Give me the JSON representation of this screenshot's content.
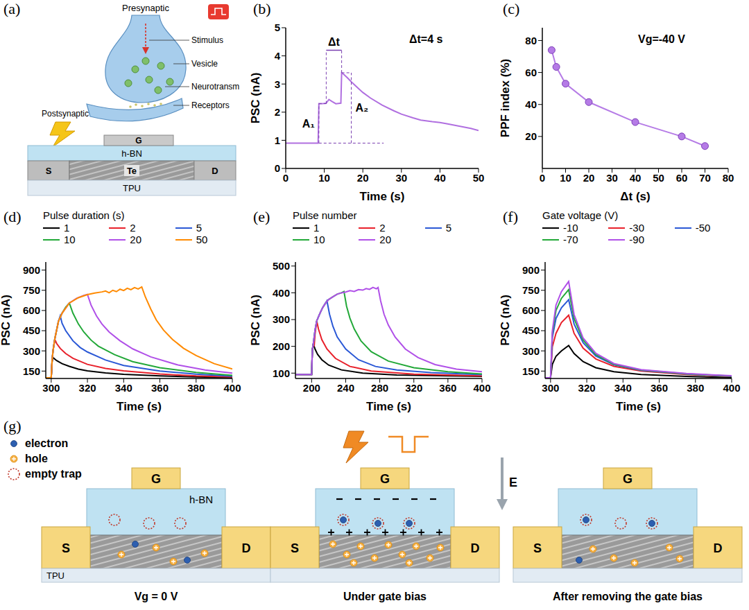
{
  "panel_a": {
    "panel": "(a)",
    "neuron": {
      "top": "Presynaptic",
      "labels": [
        "Stimulus",
        "Vesicle",
        "Neurotransm",
        "Receptors"
      ],
      "bottom": "Postsynaptic"
    },
    "device": {
      "gate": "G",
      "dielectric": "h-BN",
      "source": "S",
      "channel": "Te",
      "drain": "D",
      "substrate": "TPU"
    }
  },
  "chart_data": [
    {
      "panel": "(b)",
      "type": "line",
      "x_label": "Time (s)",
      "y_label": "PSC (nA)",
      "xlim": [
        0,
        50
      ],
      "xticks": [
        0,
        10,
        20,
        30,
        40,
        50
      ],
      "ylim": [
        0,
        5
      ],
      "yticks": [
        0,
        1,
        2,
        3,
        4,
        5
      ],
      "color": "#b06fe0",
      "x": [
        0,
        4,
        8.4,
        8.6,
        9.5,
        10.5,
        11.2,
        12,
        13,
        14.3,
        14.5,
        15,
        16,
        17,
        18,
        20,
        22,
        25,
        28,
        30,
        33,
        35,
        38,
        40,
        42,
        45,
        48,
        50
      ],
      "values": [
        0.9,
        0.9,
        0.9,
        2.3,
        2.3,
        2.32,
        2.45,
        2.38,
        2.3,
        2.32,
        3.4,
        3.35,
        3.22,
        3.08,
        2.95,
        2.7,
        2.5,
        2.25,
        2.05,
        1.93,
        1.8,
        1.72,
        1.66,
        1.63,
        1.58,
        1.5,
        1.42,
        1.35
      ],
      "annotation": "Δt=4 s",
      "guides": {
        "baseline": 0.9,
        "A1": {
          "label": "A₁",
          "x": 8.6,
          "y": 2.3
        },
        "A2": {
          "label": "A₂",
          "x": 17,
          "y": 3.4
        },
        "dt": {
          "label": "Δt",
          "x": [
            10.5,
            14.5
          ],
          "y": 4.2
        }
      }
    },
    {
      "panel": "(c)",
      "type": "line",
      "marker": "circle",
      "x_label": "Δt (s)",
      "y_label": "PPF index (%)",
      "xlim": [
        0,
        80
      ],
      "xticks": [
        0,
        10,
        20,
        30,
        40,
        50,
        60,
        70,
        80
      ],
      "ylim": [
        0,
        88
      ],
      "yticks": [
        20,
        40,
        60,
        80
      ],
      "color": "#b57be6",
      "x": [
        4,
        6,
        10,
        20,
        40,
        60,
        70
      ],
      "values": [
        74,
        63.5,
        53,
        41.5,
        29,
        20,
        14
      ],
      "annotation": "Vg=-40 V"
    },
    {
      "panel": "(d)",
      "type": "line",
      "x_label": "Time (s)",
      "y_label": "PSC (nA)",
      "xlim": [
        297,
        400
      ],
      "xticks": [
        300,
        320,
        340,
        360,
        380,
        400
      ],
      "ylim": [
        95,
        960
      ],
      "yticks": [
        150,
        300,
        450,
        600,
        750,
        900
      ],
      "legend": "top",
      "legend_title": "Pulse duration (s)",
      "series": [
        {
          "name": "1",
          "color": "#000000",
          "x": [
            297,
            300,
            300.5,
            301,
            303,
            306,
            310,
            315,
            320,
            330,
            340,
            360,
            380,
            400
          ],
          "values": [
            100,
            100,
            220,
            250,
            228,
            205,
            185,
            165,
            152,
            136,
            126,
            114,
            106,
            101
          ]
        },
        {
          "name": "2",
          "color": "#e8202a",
          "x": [
            297,
            300,
            300.5,
            301,
            302,
            303,
            305,
            308,
            312,
            320,
            330,
            340,
            360,
            380,
            400
          ],
          "values": [
            100,
            100,
            230,
            300,
            385,
            355,
            318,
            280,
            245,
            200,
            170,
            152,
            128,
            114,
            106
          ]
        },
        {
          "name": "5",
          "color": "#2a58d6",
          "x": [
            297,
            300,
            300.5,
            301,
            302,
            304,
            305,
            306,
            308,
            312,
            316,
            320,
            330,
            340,
            360,
            380,
            400
          ],
          "values": [
            100,
            100,
            230,
            300,
            390,
            520,
            560,
            505,
            450,
            375,
            325,
            292,
            232,
            192,
            150,
            127,
            112
          ]
        },
        {
          "name": "10",
          "color": "#22a838",
          "x": [
            297,
            300,
            300.5,
            301,
            302,
            304,
            306,
            308,
            310,
            312,
            315,
            318,
            322,
            326,
            335,
            345,
            360,
            380,
            400
          ],
          "values": [
            100,
            100,
            230,
            300,
            390,
            520,
            580,
            625,
            655,
            580,
            500,
            440,
            380,
            335,
            272,
            220,
            175,
            140,
            118
          ]
        },
        {
          "name": "20",
          "color": "#b050e8",
          "x": [
            297,
            300,
            300.5,
            301,
            302,
            304,
            306,
            310,
            314,
            318,
            320,
            322,
            325,
            328,
            332,
            338,
            345,
            355,
            370,
            385,
            400
          ],
          "values": [
            100,
            100,
            230,
            300,
            390,
            520,
            580,
            655,
            690,
            712,
            720,
            640,
            560,
            500,
            440,
            375,
            315,
            255,
            195,
            158,
            135
          ]
        },
        {
          "name": "50",
          "color": "#ff8a00",
          "x": [
            297,
            300,
            300.5,
            301,
            302,
            304,
            306,
            310,
            315,
            320,
            324,
            328,
            330,
            332,
            334,
            336,
            338,
            340,
            342,
            344,
            346,
            348,
            350,
            352,
            355,
            358,
            362,
            367,
            373,
            380,
            390,
            400
          ],
          "values": [
            100,
            100,
            230,
            300,
            390,
            520,
            580,
            655,
            695,
            718,
            730,
            738,
            745,
            732,
            750,
            740,
            758,
            748,
            765,
            755,
            770,
            760,
            775,
            700,
            610,
            530,
            455,
            385,
            320,
            265,
            205,
            165
          ]
        }
      ]
    },
    {
      "panel": "(e)",
      "type": "line",
      "x_label": "Time (s)",
      "y_label": "PSC (nA)",
      "xlim": [
        181,
        400
      ],
      "xticks": [
        200,
        240,
        280,
        320,
        360,
        400
      ],
      "ylim": [
        80,
        515
      ],
      "yticks": [
        100,
        200,
        300,
        400,
        500
      ],
      "legend": "top",
      "legend_title": "Pulse number",
      "series": [
        {
          "name": "1",
          "color": "#000000",
          "x": [
            181,
            200,
            200.5,
            201,
            202,
            204,
            207,
            212,
            220,
            235,
            260,
            300,
            400
          ],
          "values": [
            95,
            95,
            150,
            190,
            210,
            190,
            170,
            150,
            130,
            112,
            100,
            93,
            88
          ]
        },
        {
          "name": "2",
          "color": "#e8202a",
          "x": [
            181,
            200,
            200.5,
            201,
            202,
            203,
            204,
            205,
            206,
            208,
            212,
            218,
            228,
            245,
            270,
            320,
            400
          ],
          "values": [
            95,
            95,
            150,
            190,
            210,
            200,
            245,
            270,
            295,
            265,
            225,
            190,
            155,
            125,
            108,
            96,
            90
          ]
        },
        {
          "name": "5",
          "color": "#2a58d6",
          "x": [
            181,
            200,
            200.5,
            201,
            202,
            204,
            206,
            208,
            210,
            213,
            216,
            218,
            221,
            225,
            230,
            240,
            255,
            275,
            300,
            340,
            400
          ],
          "values": [
            95,
            95,
            150,
            190,
            210,
            260,
            295,
            310,
            325,
            345,
            360,
            370,
            320,
            275,
            235,
            190,
            150,
            125,
            112,
            102,
            94
          ]
        },
        {
          "name": "10",
          "color": "#22a838",
          "x": [
            181,
            200,
            200.5,
            201,
            202,
            204,
            206,
            208,
            210,
            213,
            216,
            220,
            225,
            230,
            235,
            238,
            241,
            245,
            250,
            258,
            270,
            290,
            320,
            360,
            400
          ],
          "values": [
            95,
            95,
            150,
            190,
            210,
            260,
            295,
            310,
            325,
            345,
            360,
            375,
            385,
            395,
            400,
            405,
            350,
            305,
            265,
            220,
            180,
            145,
            120,
            105,
            97
          ]
        },
        {
          "name": "20",
          "color": "#b050e8",
          "x": [
            181,
            200,
            200.5,
            201,
            202,
            204,
            206,
            208,
            210,
            213,
            216,
            220,
            225,
            230,
            235,
            240,
            245,
            250,
            255,
            260,
            264,
            268,
            272,
            276,
            278,
            281,
            285,
            290,
            298,
            310,
            325,
            345,
            370,
            400
          ],
          "values": [
            95,
            95,
            150,
            190,
            210,
            260,
            295,
            310,
            325,
            345,
            360,
            375,
            385,
            395,
            400,
            403,
            408,
            405,
            412,
            410,
            416,
            413,
            420,
            415,
            420,
            370,
            320,
            280,
            235,
            190,
            158,
            132,
            115,
            105
          ]
        }
      ]
    },
    {
      "panel": "(f)",
      "type": "line",
      "x_label": "Time (s)",
      "y_label": "PSC (nA)",
      "xlim": [
        297,
        400
      ],
      "xticks": [
        300,
        320,
        340,
        360,
        380,
        400
      ],
      "ylim": [
        95,
        960
      ],
      "yticks": [
        150,
        300,
        450,
        600,
        750,
        900
      ],
      "legend": "top",
      "legend_title": "Gate voltage (V)",
      "series": [
        {
          "name": "-10",
          "color": "#000000",
          "x": [
            297,
            300,
            301,
            303,
            306,
            310,
            313,
            318,
            325,
            335,
            350,
            375,
            400
          ],
          "values": [
            100,
            100,
            200,
            260,
            300,
            340,
            280,
            220,
            175,
            145,
            125,
            110,
            102
          ]
        },
        {
          "name": "-30",
          "color": "#e8202a",
          "x": [
            297,
            300,
            301,
            303,
            306,
            310,
            313,
            318,
            325,
            335,
            350,
            375,
            400
          ],
          "values": [
            100,
            100,
            330,
            430,
            510,
            565,
            430,
            320,
            240,
            185,
            150,
            125,
            110
          ]
        },
        {
          "name": "-50",
          "color": "#2a58d6",
          "x": [
            297,
            300,
            301,
            303,
            306,
            310,
            313,
            318,
            325,
            335,
            350,
            375,
            400
          ],
          "values": [
            100,
            100,
            400,
            540,
            620,
            680,
            500,
            360,
            262,
            196,
            156,
            128,
            112
          ]
        },
        {
          "name": "-70",
          "color": "#22a838",
          "x": [
            297,
            300,
            301,
            303,
            306,
            310,
            313,
            318,
            325,
            335,
            350,
            375,
            400
          ],
          "values": [
            100,
            100,
            430,
            600,
            690,
            755,
            540,
            380,
            272,
            200,
            158,
            130,
            113
          ]
        },
        {
          "name": "-90",
          "color": "#b050e8",
          "x": [
            297,
            300,
            301,
            303,
            306,
            310,
            313,
            318,
            325,
            335,
            350,
            375,
            400
          ],
          "values": [
            100,
            100,
            450,
            640,
            740,
            815,
            570,
            395,
            282,
            206,
            161,
            132,
            115
          ]
        }
      ]
    }
  ],
  "panel_g": {
    "panel": "(g)",
    "key_items": [
      "electron",
      "hole",
      "empty trap"
    ],
    "labels": {
      "gate": "G",
      "dielectric": "h-BN",
      "source": "S",
      "drain": "D",
      "substrate": "TPU"
    },
    "field": "E",
    "captions": [
      "Vg = 0 V",
      "Under gate bias",
      "After removing the gate bias"
    ]
  }
}
